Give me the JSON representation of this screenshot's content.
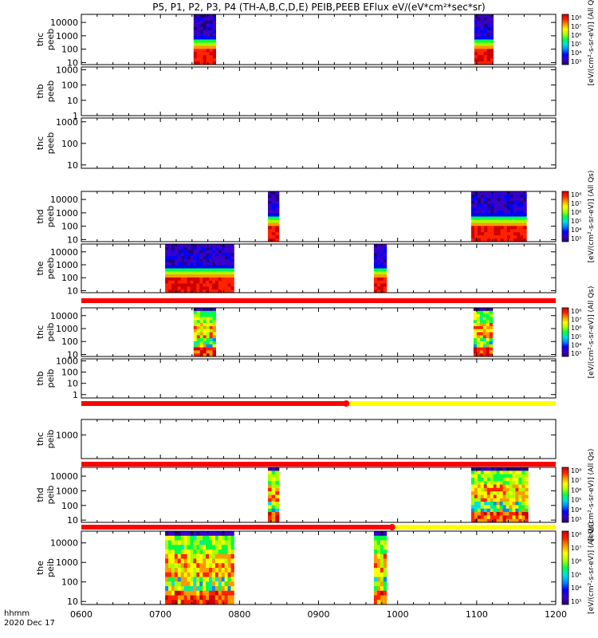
{
  "chart_data": {
    "type": "heatmap",
    "title": "P5, P1, P2, P3, P4 (TH-A,B,C,D,E) PEIB,PEEB EFlux eV/(eV*cm²*sec*sr)",
    "x_axis": {
      "ticks": [
        "0600",
        "0700",
        "0800",
        "0900",
        "1000",
        "1100",
        "1200"
      ],
      "xlim": [
        600,
        1200
      ],
      "label_line1": "hhmm",
      "label_line2": "2020 Dec 17"
    },
    "colorbar_label": "[eV/(cm²-s-sr-eV)] (All Qs)",
    "colorbar_ticks": [
      "10⁸",
      "10⁷",
      "10⁶",
      "10⁵",
      "10⁴",
      "10³"
    ],
    "panels": [
      {
        "probe": "thc",
        "instrument": "peeb",
        "yscale": "log",
        "yticks": [
          "10000",
          "1000",
          "100",
          "10"
        ],
        "ylim": [
          7,
          40000
        ],
        "has_colorbar": true,
        "segments": [
          {
            "start": 742,
            "end": 770,
            "profile": "top"
          },
          {
            "start": 1097,
            "end": 1121,
            "profile": "top"
          }
        ]
      },
      {
        "probe": "thb",
        "instrument": "peeb",
        "yscale": "log",
        "yticks": [
          "1000",
          "100",
          "10",
          "1"
        ],
        "ylim": [
          1,
          1500
        ],
        "has_colorbar": false,
        "segments": []
      },
      {
        "probe": "thc",
        "instrument": "peeb",
        "yscale": "log",
        "yticks": [
          "1000",
          "100",
          "10"
        ],
        "ylim": [
          7,
          1500
        ],
        "has_colorbar": false,
        "segments": []
      },
      {
        "probe": "thd",
        "instrument": "peeb",
        "yscale": "log",
        "yticks": [
          "10000",
          "1000",
          "100",
          "10"
        ],
        "ylim": [
          7,
          40000
        ],
        "has_colorbar": true,
        "segments": [
          {
            "start": 836,
            "end": 850,
            "profile": "top"
          },
          {
            "start": 1093,
            "end": 1163,
            "profile": "top"
          }
        ]
      },
      {
        "probe": "the",
        "instrument": "peeb",
        "yscale": "log",
        "yticks": [
          "10000",
          "1000",
          "100",
          "10"
        ],
        "ylim": [
          7,
          40000
        ],
        "has_colorbar": false,
        "segments": [
          {
            "start": 706,
            "end": 793,
            "profile": "top"
          },
          {
            "start": 970,
            "end": 986,
            "profile": "top"
          }
        ]
      },
      {
        "probe": "thc",
        "instrument": "peib",
        "yscale": "log",
        "yticks": [
          "10000",
          "1000",
          "100",
          "10"
        ],
        "ylim": [
          7,
          40000
        ],
        "has_colorbar": true,
        "segments": [
          {
            "start": 742,
            "end": 770,
            "profile": "ion"
          },
          {
            "start": 1096,
            "end": 1120,
            "profile": "ion"
          }
        ]
      },
      {
        "probe": "thb",
        "instrument": "peib",
        "yscale": "log",
        "yticks": [
          "1000",
          "100",
          "10",
          "1"
        ],
        "ylim": [
          0.5,
          1500
        ],
        "has_colorbar": false,
        "segments": []
      },
      {
        "probe": "thc",
        "instrument": "peib",
        "yscale": "log",
        "yticks": [
          "1000"
        ],
        "ylim": [
          10,
          20000
        ],
        "has_colorbar": false,
        "segments": []
      },
      {
        "probe": "thd",
        "instrument": "peib",
        "yscale": "log",
        "yticks": [
          "10000",
          "1000",
          "100",
          "10"
        ],
        "ylim": [
          7,
          40000
        ],
        "has_colorbar": true,
        "segments": [
          {
            "start": 836,
            "end": 850,
            "profile": "ion"
          },
          {
            "start": 1093,
            "end": 1165,
            "profile": "ion"
          }
        ]
      },
      {
        "probe": "the",
        "instrument": "peib",
        "yscale": "log",
        "yticks": [
          "10000",
          "1000",
          "100",
          "10"
        ],
        "ylim": [
          7,
          40000
        ],
        "has_colorbar": true,
        "segments": [
          {
            "start": 706,
            "end": 793,
            "profile": "ion"
          },
          {
            "start": 970,
            "end": 986,
            "profile": "ion"
          }
        ]
      }
    ],
    "mode_bars": [
      {
        "after_panel": 4,
        "red_end": 1200,
        "marker": null
      },
      {
        "after_panel": 6,
        "red_end": 935,
        "marker": 935
      },
      {
        "after_panel": 7,
        "red_end": 1200,
        "marker": null
      },
      {
        "after_panel": 8,
        "red_end": 993,
        "marker": 993
      }
    ],
    "colors": {
      "mode_red": "#ff0000",
      "mode_yellow": "#ffff00",
      "colormap": [
        "#20007a",
        "#3a00c8",
        "#0000ff",
        "#0088ff",
        "#00e0e0",
        "#00ff44",
        "#aaff00",
        "#ffff00",
        "#ff9900",
        "#ff2200",
        "#cc0000"
      ]
    }
  }
}
